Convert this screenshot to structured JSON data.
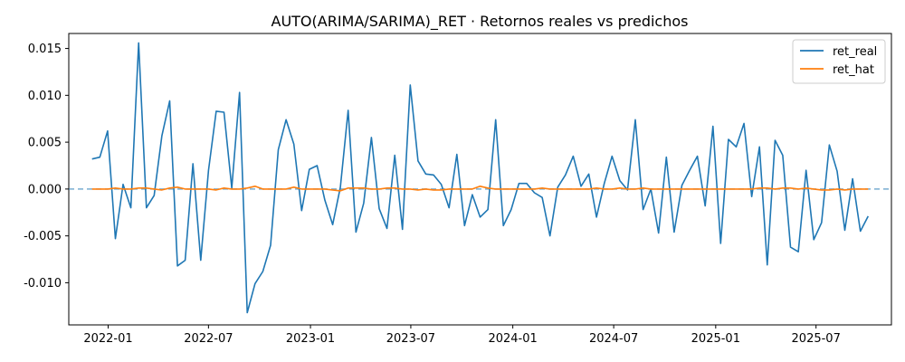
{
  "chart_data": {
    "type": "line",
    "title": "AUTO(ARIMA/SARIMA)_RET · Retornos reales vs predichos",
    "xlabel": "",
    "ylabel": "",
    "x_ticks": [
      "2022-01",
      "2022-07",
      "2023-01",
      "2023-07",
      "2024-01",
      "2024-07",
      "2025-01",
      "2025-07"
    ],
    "y_ticks": [
      "0.015",
      "0.010",
      "0.005",
      "0.000",
      "-0.005",
      "-0.010"
    ],
    "ylim": [
      -0.0145,
      0.0166
    ],
    "x": [
      "2021-12-03",
      "2021-12-17",
      "2021-12-31",
      "2022-01-14",
      "2022-01-28",
      "2022-02-11",
      "2022-02-25",
      "2022-03-11",
      "2022-03-25",
      "2022-04-08",
      "2022-04-22",
      "2022-05-06",
      "2022-05-20",
      "2022-06-03",
      "2022-06-17",
      "2022-07-01",
      "2022-07-15",
      "2022-07-29",
      "2022-08-12",
      "2022-08-26",
      "2022-09-09",
      "2022-09-23",
      "2022-10-07",
      "2022-10-21",
      "2022-11-04",
      "2022-11-18",
      "2022-12-02",
      "2022-12-16",
      "2022-12-30",
      "2023-01-13",
      "2023-01-27",
      "2023-02-10",
      "2023-02-24",
      "2023-03-10",
      "2023-03-24",
      "2023-04-07",
      "2023-04-21",
      "2023-05-05",
      "2023-05-19",
      "2023-06-02",
      "2023-06-16",
      "2023-06-30",
      "2023-07-14",
      "2023-07-28",
      "2023-08-11",
      "2023-08-25",
      "2023-09-08",
      "2023-09-22",
      "2023-10-06",
      "2023-10-20",
      "2023-11-03",
      "2023-11-17",
      "2023-12-01",
      "2023-12-15",
      "2023-12-29",
      "2024-01-12",
      "2024-01-26",
      "2024-02-09",
      "2024-02-23",
      "2024-03-08",
      "2024-03-22",
      "2024-04-05",
      "2024-04-19",
      "2024-05-03",
      "2024-05-17",
      "2024-05-31",
      "2024-06-14",
      "2024-06-28",
      "2024-07-12",
      "2024-07-26",
      "2024-08-09",
      "2024-08-23",
      "2024-09-06",
      "2024-09-20",
      "2024-10-04",
      "2024-10-18",
      "2024-11-01",
      "2024-11-15",
      "2024-11-29",
      "2024-12-13",
      "2024-12-27",
      "2025-01-10",
      "2025-01-24",
      "2025-02-07",
      "2025-02-21",
      "2025-03-07",
      "2025-03-21",
      "2025-04-04",
      "2025-04-18",
      "2025-05-02",
      "2025-05-16",
      "2025-05-30",
      "2025-06-13",
      "2025-06-27",
      "2025-07-11",
      "2025-07-25",
      "2025-08-08",
      "2025-08-22",
      "2025-09-05",
      "2025-09-19",
      "2025-10-03"
    ],
    "series": [
      {
        "name": "ret_real",
        "color": "#1f77b4",
        "values": [
          0.0032,
          0.0034,
          0.0062,
          -0.0053,
          0.0005,
          -0.002,
          0.0156,
          -0.002,
          -0.0007,
          0.0057,
          0.0094,
          -0.0082,
          -0.0076,
          0.0027,
          -0.0076,
          0.002,
          0.0083,
          0.0082,
          0.0001,
          0.0103,
          -0.0132,
          -0.0101,
          -0.0088,
          -0.006,
          0.0042,
          0.0074,
          0.0048,
          -0.0023,
          0.0021,
          0.0025,
          -0.0012,
          -0.0038,
          0.0002,
          0.0084,
          -0.0046,
          -0.0015,
          0.0055,
          -0.0021,
          -0.0042,
          0.0036,
          -0.0043,
          0.0111,
          0.003,
          0.0016,
          0.0015,
          0.0005,
          -0.002,
          0.0037,
          -0.0039,
          -0.0006,
          -0.003,
          -0.0022,
          0.0074,
          -0.0039,
          -0.0022,
          0.0006,
          0.0006,
          -0.0004,
          -0.0009,
          -0.005,
          0.0002,
          0.0015,
          0.0035,
          0.0003,
          0.0016,
          -0.003,
          0.0006,
          0.0035,
          0.0009,
          -0.0001,
          0.0074,
          -0.0022,
          0.0,
          -0.0047,
          0.0034,
          -0.0046,
          0.0004,
          0.002,
          0.0035,
          -0.0018,
          0.0067,
          -0.0058,
          0.0053,
          0.0045,
          0.007,
          -0.0008,
          0.0045,
          -0.0081,
          0.0052,
          0.0036,
          -0.0062,
          -0.0067,
          0.002,
          -0.0054,
          -0.0036,
          0.0047,
          0.0019,
          -0.0044,
          0.0011,
          -0.0045,
          -0.0029
        ]
      },
      {
        "name": "ret_hat",
        "color": "#ff7f0e",
        "values": [
          0.0,
          0.0,
          0.0,
          0.0001,
          0.0,
          0.0,
          0.0001,
          0.0001,
          0.0,
          -0.0001,
          0.0001,
          0.0002,
          0.0,
          0.0,
          0.0,
          0.0,
          -0.0001,
          0.0001,
          0.0,
          0.0,
          0.0001,
          0.0003,
          0.0,
          0.0,
          0.0,
          0.0,
          0.0002,
          0.0,
          0.0,
          0.0,
          0.0,
          -0.0001,
          -0.0002,
          0.0001,
          0.0001,
          0.0001,
          0.0,
          0.0,
          0.0001,
          0.0001,
          0.0,
          0.0,
          -0.0001,
          0.0,
          -0.0001,
          -0.0001,
          0.0,
          0.0,
          0.0,
          0.0,
          0.0003,
          0.0001,
          0.0,
          0.0,
          0.0,
          0.0,
          0.0,
          0.0,
          0.0001,
          0.0,
          0.0,
          0.0,
          0.0,
          0.0,
          0.0,
          0.0001,
          0.0,
          0.0,
          0.0001,
          0.0,
          0.0,
          0.0001,
          0.0,
          0.0,
          0.0,
          0.0,
          0.0,
          0.0,
          0.0,
          0.0,
          0.0,
          0.0,
          0.0,
          0.0,
          0.0,
          0.0,
          0.0001,
          0.0001,
          0.0,
          0.0001,
          0.0001,
          0.0,
          0.0001,
          0.0,
          -0.0001,
          -0.0001,
          0.0,
          -0.0001,
          0.0,
          0.0,
          0.0
        ]
      }
    ],
    "reference_line": {
      "y": 0.0,
      "style": "dashed",
      "color": "#1f77b4"
    },
    "legend": {
      "position": "top-right",
      "entries": [
        "ret_real",
        "ret_hat"
      ]
    },
    "grid": false
  }
}
